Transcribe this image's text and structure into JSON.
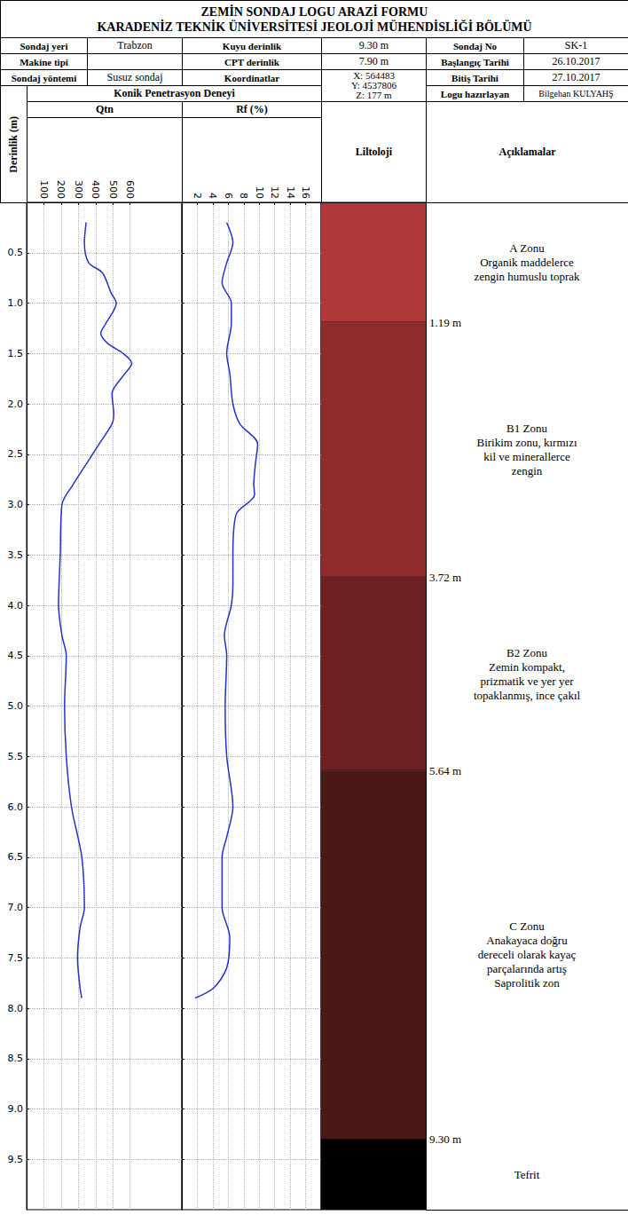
{
  "header": {
    "title": [
      "ZEMİN SONDAJ LOGU ARAZİ FORMU",
      "KARADENİZ TEKNİK ÜNİVERSİTESİ JEOLOJİ MÜHENDİSLİĞİ BÖLÜMÜ"
    ],
    "rows": [
      [
        {
          "label": "Sondaj yeri",
          "value": "Trabzon"
        },
        {
          "label": "Kuyu derinlik",
          "value": "9.30 m"
        },
        {
          "label": "Sondaj No",
          "value": "SK-1"
        }
      ],
      [
        {
          "label": "Makine tipi",
          "value": null
        },
        {
          "label": "CPT derinlik",
          "value": "7.90 m"
        },
        {
          "label": "Başlangıç Tarihi",
          "value": "26.10.2017"
        }
      ],
      [
        {
          "label": "Sondaj yöntemi",
          "value": "Susuz sondaj"
        },
        {
          "label": "Koordinatlar",
          "value": [
            "X: 564483",
            "Y: 4537806",
            "Z: 177 m"
          ]
        },
        {
          "label": "Bitiş Tarihi",
          "value": "27.10.2017"
        }
      ],
      [
        {
          "label": "Logu hazırlayan",
          "value": "Bilgehan KULYAHŞ"
        }
      ]
    ]
  },
  "section_title": "Konik Penetrasyon Deneyi",
  "chart_data": [
    {
      "type": "line",
      "title": "Qtn",
      "ylabel": "Derinlik (m)",
      "color": "#2233cc",
      "grid": true,
      "x": [
        345,
        335,
        360,
        440,
        490,
        520,
        460,
        430,
        470,
        560,
        610,
        570,
        495,
        505,
        495,
        420,
        345,
        270,
        205,
        195,
        185,
        205,
        230,
        220,
        230,
        260,
        320,
        335,
        310,
        295,
        310,
        320
      ],
      "y": [
        0.2,
        0.4,
        0.6,
        0.7,
        0.9,
        1.0,
        1.2,
        1.3,
        1.4,
        1.5,
        1.6,
        1.7,
        1.9,
        2.1,
        2.2,
        2.4,
        2.6,
        2.8,
        3.0,
        3.5,
        4.0,
        4.3,
        4.5,
        5.0,
        5.5,
        6.0,
        6.5,
        7.0,
        7.2,
        7.5,
        7.8,
        7.9
      ],
      "xlim": [
        0,
        900
      ],
      "xticks": [
        100,
        200,
        300,
        400,
        500,
        600
      ],
      "ylim": [
        10,
        0
      ],
      "yticks": [
        0.5,
        {
          "value": 1,
          "label": "1.0"
        },
        1.5,
        {
          "value": 2,
          "label": "2.0"
        },
        2.5,
        {
          "value": 3,
          "label": "3.0"
        },
        3.5,
        {
          "value": 4,
          "label": "4.0"
        },
        4.5,
        {
          "value": 5,
          "label": "5.0"
        },
        5.5,
        {
          "value": 6,
          "label": "6.0"
        },
        6.5,
        {
          "value": 7,
          "label": "7.0"
        },
        7.5,
        {
          "value": 8,
          "label": "8.0"
        },
        8.5,
        {
          "value": 9,
          "label": "9.0"
        },
        9.5
      ]
    },
    {
      "type": "line",
      "title": "Rf (%)",
      "color": "#2233cc",
      "grid": true,
      "tick_labels": "x",
      "x": [
        5.8,
        6.6,
        5.8,
        5.2,
        6.4,
        6.4,
        5.8,
        6.2,
        6.6,
        7.5,
        9.8,
        9.5,
        9.3,
        9.4,
        7.0,
        6.6,
        6.6,
        6.4,
        5.5,
        5.8,
        5.6,
        5.8,
        6.6,
        5.8,
        5.2,
        5.2,
        6.2,
        5.8,
        4.1,
        1.7
      ],
      "y": [
        0.2,
        0.4,
        0.6,
        0.8,
        1.0,
        1.2,
        1.5,
        1.7,
        2.0,
        2.2,
        2.4,
        2.6,
        2.8,
        2.9,
        3.1,
        3.5,
        3.8,
        4.0,
        4.3,
        4.5,
        5.0,
        5.5,
        6.0,
        6.3,
        6.5,
        7.0,
        7.3,
        7.6,
        7.8,
        7.9
      ],
      "xlim": [
        0,
        18
      ],
      "xticks": [
        2,
        4,
        6,
        8,
        10,
        12,
        14,
        16
      ],
      "ylim": [
        10,
        0
      ],
      "yticks": [
        0.5,
        {
          "value": 1,
          "label": "1.0"
        },
        1.5,
        {
          "value": 2,
          "label": "2.0"
        },
        2.5,
        {
          "value": 3,
          "label": "3.0"
        },
        3.5,
        {
          "value": 4,
          "label": "4.0"
        },
        4.5,
        {
          "value": 5,
          "label": "5.0"
        },
        5.5,
        {
          "value": 6,
          "label": "6.0"
        },
        6.5,
        {
          "value": 7,
          "label": "7.0"
        },
        7.5,
        {
          "value": 8,
          "label": "8.0"
        },
        8.5,
        {
          "value": 9,
          "label": "9.0"
        },
        9.5
      ]
    }
  ],
  "lithology": {
    "title": "Liltoloji",
    "descriptions_title": "Açıklamalar",
    "zones": [
      {
        "top": 0,
        "bottom": 1.19,
        "bottom_label": "1.19 m",
        "color": "#b03a3a",
        "description": [
          "A Zonu",
          "Organik maddelerce",
          "zengin humuslu toprak"
        ]
      },
      {
        "top": 1.19,
        "bottom": 3.72,
        "bottom_label": "3.72 m",
        "color": "#8f2d2d",
        "description": [
          "B1 Zonu",
          "Birikim zonu, kırmızı",
          "kil ve minerallerce",
          "zengin"
        ]
      },
      {
        "top": 3.72,
        "bottom": 5.64,
        "bottom_label": "5.64 m",
        "color": "#6d2222",
        "description": [
          "B2 Zonu",
          "Zemin kompakt,",
          "prizmatik ve yer yer",
          "topaklanmış, ince çakıl"
        ]
      },
      {
        "top": 5.64,
        "bottom": 9.3,
        "bottom_label": "9.30 m",
        "color": "#4b1818",
        "description": [
          "C Zonu",
          "Anakayaca doğru",
          "dereceli olarak kayaç",
          "parçalarında artış",
          "Saprolitik zon"
        ]
      },
      {
        "top": 9.3,
        "bottom": null,
        "bottom_label": null,
        "color": "#000000",
        "description": [
          "Tefrit"
        ]
      }
    ]
  }
}
